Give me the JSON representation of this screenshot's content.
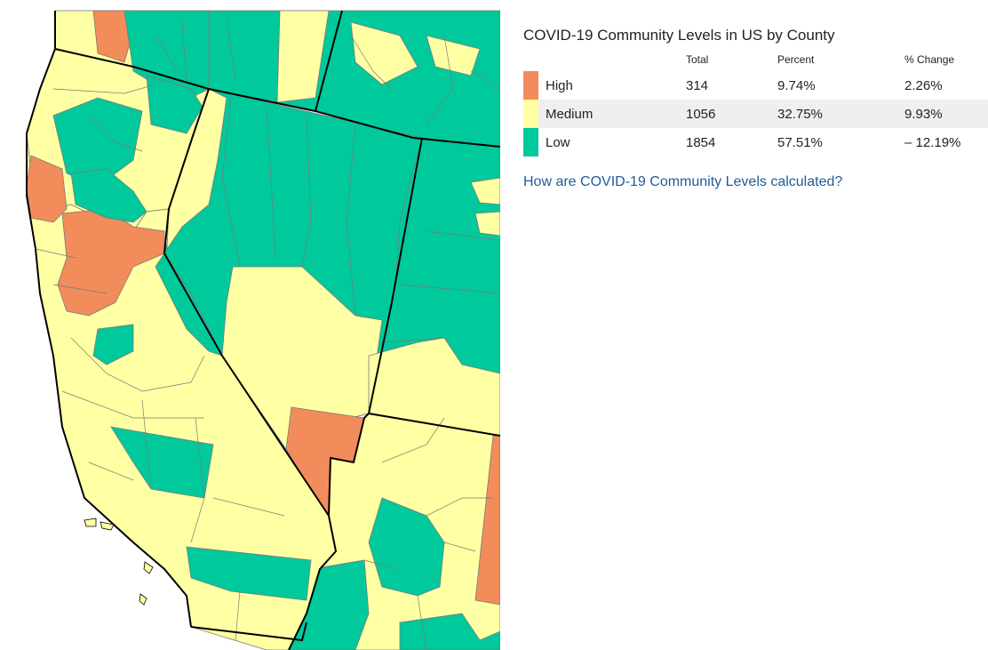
{
  "title": "COVID-19 Community Levels in US by County",
  "colors": {
    "high": "#f28c5b",
    "medium": "#ffffa3",
    "low": "#00c99c",
    "border": "#7a7a7a",
    "state_border": "#000000",
    "link": "#1f5c99"
  },
  "table": {
    "headers": {
      "level": "",
      "total": "Total",
      "percent": "Percent",
      "change": "% Change"
    },
    "rows": [
      {
        "level": "High",
        "total": "314",
        "percent": "9.74%",
        "change": "2.26%",
        "color": "#f28c5b"
      },
      {
        "level": "Medium",
        "total": "1056",
        "percent": "32.75%",
        "change": "9.93%",
        "color": "#ffffa3"
      },
      {
        "level": "Low",
        "total": "1854",
        "percent": "57.51%",
        "change": "– 12.19%",
        "color": "#00c99c"
      }
    ]
  },
  "link": {
    "text": "How are COVID-19 Community Levels calculated?"
  },
  "map": {
    "region": "western United States",
    "levels_shown": [
      "High",
      "Medium",
      "Low"
    ]
  }
}
